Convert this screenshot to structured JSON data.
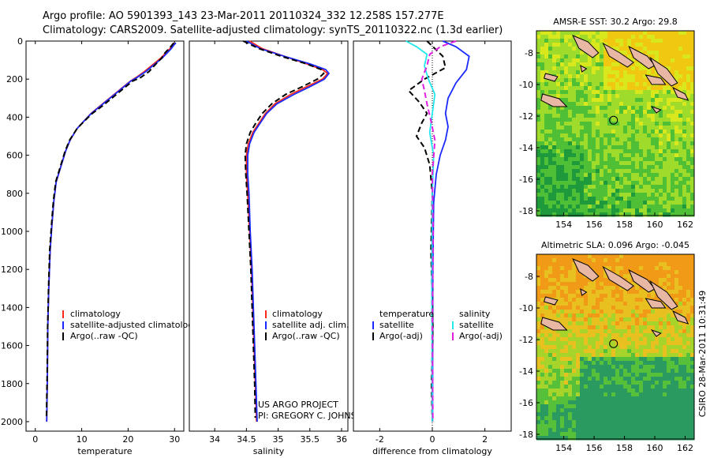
{
  "header": {
    "line1": "Argo profile: AO 5901393_143 23-Mar-2011 20110324_332 12.258S 157.277E",
    "line2": "Climatology: CARS2009. Satellite-adjusted climatology: synTS_20110322.nc (1.3d earlier)"
  },
  "side_label": "CSIRO 28-Mar-2011 10:31:49",
  "colors": {
    "clim": "#ff2a1a",
    "sat": "#1a2aff",
    "argo": "#000000",
    "sal_sat": "#22e8ee",
    "sal_argo": "#e020e0",
    "map_circle": "#000000"
  },
  "chart_data": [
    {
      "type": "line",
      "id": "temperature",
      "xlabel": "temperature",
      "ylabel": "",
      "xlim": [
        -2,
        32
      ],
      "ylim": [
        2050,
        0
      ],
      "xticks": [
        0,
        10,
        20,
        30
      ],
      "xtick_labels": [
        "0",
        "10",
        "20",
        "30"
      ],
      "yticks": [
        0,
        200,
        400,
        600,
        800,
        1000,
        1200,
        1400,
        1600,
        1800,
        2000
      ],
      "ytick_labels": [
        "0",
        "200",
        "400",
        "600",
        "800",
        "1000",
        "1200",
        "1400",
        "1600",
        "1800",
        "2000"
      ],
      "legend_position": "lower-center",
      "legend": [
        "climatology",
        "satellite-adjusted climatology",
        "Argo(..raw -QC)"
      ],
      "series": [
        {
          "name": "climatology",
          "style": "solid",
          "color": "#ff2a1a",
          "x": [
            30,
            29.6,
            29,
            28.2,
            27,
            25.5,
            23.5,
            21.8,
            20.5,
            18.5,
            16.5,
            14,
            12,
            10.5,
            9,
            7.5,
            6.5,
            5.5,
            4.5,
            4,
            3.6,
            3.2,
            2.9,
            2.7,
            2.6,
            2.45
          ],
          "y": [
            10,
            20,
            40,
            60,
            90,
            120,
            160,
            190,
            210,
            250,
            290,
            340,
            380,
            420,
            460,
            520,
            580,
            660,
            740,
            840,
            960,
            1100,
            1300,
            1500,
            1750,
            2000
          ]
        },
        {
          "name": "satellite-adjusted climatology",
          "style": "solid",
          "color": "#1a2aff",
          "x": [
            30.3,
            29.9,
            29.3,
            28.5,
            27.3,
            25.8,
            23.8,
            22,
            20.6,
            18.6,
            16.6,
            14.1,
            12.1,
            10.5,
            9,
            7.5,
            6.5,
            5.5,
            4.5,
            4,
            3.6,
            3.2,
            2.9,
            2.7,
            2.6,
            2.45
          ],
          "y": [
            10,
            20,
            40,
            60,
            90,
            120,
            160,
            190,
            210,
            250,
            290,
            340,
            380,
            420,
            460,
            520,
            580,
            660,
            740,
            840,
            960,
            1100,
            1300,
            1500,
            1750,
            2000
          ]
        },
        {
          "name": "Argo(..raw -QC)",
          "style": "dashed",
          "color": "#000000",
          "x": [
            29.8,
            29.5,
            28.8,
            28,
            27.2,
            26,
            24.5,
            22.8,
            21,
            19,
            17,
            14.5,
            12.3,
            10.6,
            9,
            7.4,
            6.4,
            5.4,
            4.4,
            3.9,
            3.5,
            3.1,
            2.85,
            2.65,
            2.55,
            2.4
          ],
          "y": [
            10,
            20,
            40,
            60,
            90,
            120,
            160,
            190,
            210,
            250,
            290,
            340,
            380,
            420,
            460,
            520,
            580,
            660,
            740,
            840,
            960,
            1100,
            1300,
            1500,
            1750,
            1980
          ]
        }
      ]
    },
    {
      "type": "line",
      "id": "salinity",
      "xlabel": "salinity",
      "ylabel": "",
      "xlim": [
        33.6,
        36.1
      ],
      "ylim": [
        2050,
        0
      ],
      "xticks": [
        34,
        34.5,
        35,
        35.5,
        36
      ],
      "xtick_labels": [
        "34",
        "34.5",
        "35",
        "35.5",
        "36"
      ],
      "legend_position": "lower-right",
      "legend": [
        "climatology",
        "satellite adj. clim.",
        "Argo(..raw -QC)"
      ],
      "annotation": [
        "US ARGO PROJECT",
        "PI: GREGORY C. JOHNSON"
      ],
      "series": [
        {
          "name": "climatology",
          "style": "solid",
          "color": "#ff2a1a",
          "x": [
            34.55,
            34.75,
            35.1,
            35.45,
            35.7,
            35.78,
            35.7,
            35.45,
            35.2,
            34.95,
            34.8,
            34.7,
            34.6,
            34.53,
            34.5,
            34.5,
            34.52,
            34.55,
            34.58,
            34.6,
            34.62,
            34.64,
            34.66
          ],
          "y": [
            0,
            40,
            80,
            120,
            150,
            170,
            200,
            240,
            280,
            330,
            380,
            430,
            480,
            540,
            600,
            700,
            800,
            1000,
            1200,
            1400,
            1600,
            1800,
            2000
          ]
        },
        {
          "name": "satellite adj. clim.",
          "style": "solid",
          "color": "#1a2aff",
          "x": [
            34.5,
            34.72,
            35.1,
            35.5,
            35.75,
            35.8,
            35.73,
            35.5,
            35.25,
            34.98,
            34.82,
            34.72,
            34.62,
            34.55,
            34.52,
            34.52,
            34.54,
            34.56,
            34.59,
            34.61,
            34.63,
            34.65,
            34.67
          ],
          "y": [
            0,
            40,
            80,
            120,
            150,
            170,
            200,
            240,
            280,
            330,
            380,
            430,
            480,
            540,
            600,
            700,
            800,
            1000,
            1200,
            1400,
            1600,
            1800,
            2000
          ]
        },
        {
          "name": "Argo(..raw -QC)",
          "style": "dashed",
          "color": "#000000",
          "x": [
            34.45,
            34.7,
            35.05,
            35.45,
            35.68,
            35.72,
            35.62,
            35.38,
            35.12,
            34.9,
            34.75,
            34.65,
            34.56,
            34.5,
            34.48,
            34.49,
            34.51,
            34.54,
            34.57,
            34.59,
            34.61,
            34.63,
            34.64
          ],
          "y": [
            0,
            40,
            80,
            120,
            150,
            170,
            200,
            240,
            280,
            330,
            380,
            430,
            480,
            540,
            600,
            700,
            800,
            1000,
            1200,
            1400,
            1600,
            1800,
            1980
          ]
        }
      ]
    },
    {
      "type": "line",
      "id": "difference",
      "xlabel": "difference from climatology",
      "ylabel": "",
      "xlim": [
        -3,
        3
      ],
      "ylim": [
        2050,
        0
      ],
      "xticks": [
        -2,
        0,
        2
      ],
      "xtick_labels": [
        "-2",
        "0",
        "2"
      ],
      "legend_position": "lower-center",
      "legend_headers": [
        "temperature",
        "salinity"
      ],
      "legend": [
        "satellite",
        "Argo(-adj)",
        "satellite",
        "Argo(-adj)"
      ],
      "series": [
        {
          "name": "satellite",
          "group": "temperature",
          "style": "solid",
          "color": "#1a2aff",
          "x": [
            0.4,
            0.9,
            1.4,
            1.3,
            0.9,
            0.6,
            0.5,
            0.6,
            0.5,
            0.3,
            0.15,
            0.05,
            0.02,
            0.01
          ],
          "y": [
            0,
            30,
            80,
            150,
            220,
            300,
            380,
            450,
            520,
            600,
            700,
            850,
            1200,
            2000
          ]
        },
        {
          "name": "Argo(-adj)",
          "group": "temperature",
          "style": "dashed",
          "color": "#000000",
          "x": [
            -0.2,
            0.1,
            0.4,
            0.5,
            -0.3,
            -0.9,
            -0.5,
            -0.2,
            -0.4,
            -0.6,
            -0.3,
            -0.1,
            0.0,
            -0.05,
            0.02,
            -0.03,
            0.0
          ],
          "y": [
            0,
            40,
            80,
            140,
            200,
            260,
            320,
            380,
            430,
            500,
            560,
            650,
            800,
            1100,
            1500,
            1800,
            2000
          ]
        },
        {
          "name": "satellite",
          "group": "salinity",
          "style": "solid",
          "color": "#22e8ee",
          "x": [
            -1.0,
            -0.6,
            -0.2,
            -0.3,
            -0.15,
            0.1,
            0.0,
            -0.1,
            0.05,
            0.0,
            -0.02,
            0.0
          ],
          "y": [
            0,
            30,
            70,
            130,
            200,
            280,
            380,
            480,
            600,
            800,
            1300,
            2000
          ]
        },
        {
          "name": "Argo(-adj)",
          "group": "salinity",
          "style": "dashed",
          "color": "#e020e0",
          "x": [
            0.9,
            0.3,
            -0.1,
            -0.2,
            -0.4,
            -0.3,
            -0.2,
            -0.05,
            0.1,
            0.0,
            0.03,
            0.0,
            0.02
          ],
          "y": [
            0,
            30,
            70,
            130,
            200,
            260,
            330,
            420,
            520,
            700,
            1000,
            1500,
            2000
          ]
        }
      ]
    },
    {
      "type": "heatmap",
      "id": "sst-map",
      "title": "AMSR-E SST: 30.2  Argo: 29.8",
      "xlim": [
        152.2,
        162.6
      ],
      "ylim": [
        -18.3,
        -6.6
      ],
      "xticks": [
        154,
        156,
        158,
        160,
        162
      ],
      "xtick_labels": [
        "154",
        "156",
        "158",
        "160",
        "162"
      ],
      "yticks": [
        -8,
        -10,
        -12,
        -14,
        -16,
        -18
      ],
      "ytick_labels": [
        "-8",
        "-10",
        "-12",
        "-14",
        "-16",
        "-18"
      ],
      "marker": {
        "lon": 157.28,
        "lat": -12.26
      },
      "palette": [
        "#1e9a3c",
        "#4fc036",
        "#9edb2a",
        "#d8e81c",
        "#f0c812"
      ]
    },
    {
      "type": "heatmap",
      "id": "sla-map",
      "title": "Altimetric SLA: 0.096  Argo: -0.045",
      "xlim": [
        152.2,
        162.6
      ],
      "ylim": [
        -18.3,
        -6.6
      ],
      "xticks": [
        154,
        156,
        158,
        160,
        162
      ],
      "xtick_labels": [
        "154",
        "156",
        "158",
        "160",
        "162"
      ],
      "yticks": [
        -8,
        -10,
        -12,
        -14,
        -16,
        -18
      ],
      "ytick_labels": [
        "-8",
        "-10",
        "-12",
        "-14",
        "-16",
        "-18"
      ],
      "marker": {
        "lon": 157.28,
        "lat": -12.26
      },
      "palette": [
        "#2a9a60",
        "#56c03a",
        "#a6d42a",
        "#e8c020",
        "#f09a18"
      ]
    }
  ]
}
